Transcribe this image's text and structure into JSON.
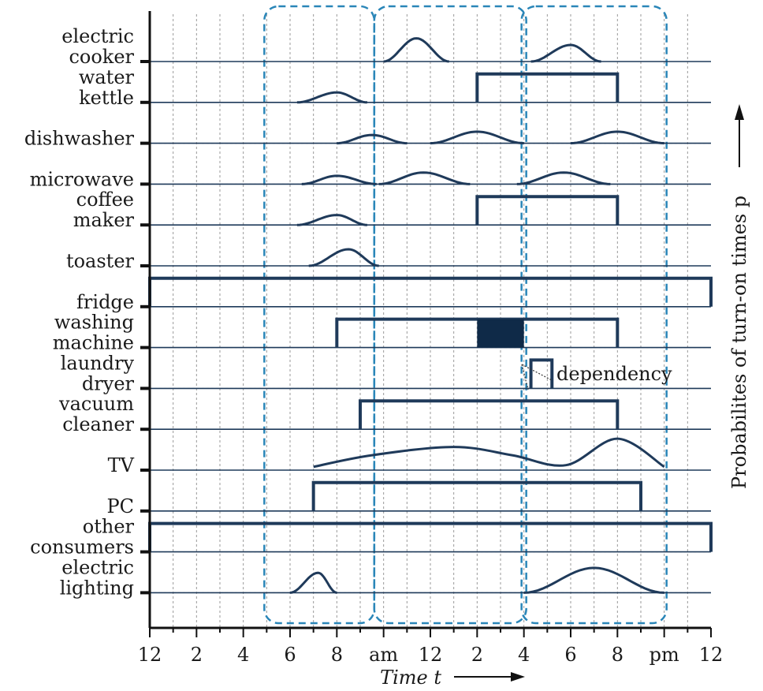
{
  "chart_data": {
    "type": "line",
    "xlabel": "Time t",
    "ylabel": "Probabilites of turn-on times p",
    "x_ticks": [
      "12",
      "2",
      "4",
      "6",
      "8",
      "am",
      "12",
      "2",
      "4",
      "6",
      "8",
      "pm",
      "12"
    ],
    "xlim": [
      0,
      24
    ],
    "grid": true,
    "annotation": "dependency",
    "highlight_windows": [
      [
        5.0,
        9.5
      ],
      [
        9.7,
        16.0
      ],
      [
        16.0,
        22.0
      ]
    ],
    "series": [
      {
        "name": "electric cooker",
        "label_lines": [
          "electric",
          "cooker"
        ],
        "kind": "bumps",
        "bumps": [
          {
            "start": 10.0,
            "peak": 11.4,
            "end": 12.8,
            "height": 0.7
          },
          {
            "start": 16.3,
            "peak": 18.0,
            "end": 19.3,
            "height": 0.5
          }
        ]
      },
      {
        "name": "water kettle",
        "label_lines": [
          "water",
          "kettle"
        ],
        "kind": "bumps+window",
        "bumps": [
          {
            "start": 6.3,
            "peak": 8.0,
            "end": 9.3,
            "height": 0.3
          }
        ],
        "windows": [
          {
            "start": 14.0,
            "end": 20.0
          }
        ]
      },
      {
        "name": "dishwasher",
        "label_lines": [
          "dishwasher"
        ],
        "kind": "bumps",
        "bumps": [
          {
            "start": 8.0,
            "peak": 9.5,
            "end": 11.0,
            "height": 0.25
          },
          {
            "start": 12.0,
            "peak": 14.0,
            "end": 16.0,
            "height": 0.35
          },
          {
            "start": 18.0,
            "peak": 20.0,
            "end": 22.0,
            "height": 0.35
          }
        ]
      },
      {
        "name": "microwave",
        "label_lines": [
          "microwave"
        ],
        "kind": "bumps",
        "bumps": [
          {
            "start": 6.5,
            "peak": 8.0,
            "end": 9.7,
            "height": 0.25
          },
          {
            "start": 9.8,
            "peak": 11.7,
            "end": 13.7,
            "height": 0.35
          },
          {
            "start": 15.7,
            "peak": 17.7,
            "end": 19.7,
            "height": 0.35
          }
        ]
      },
      {
        "name": "coffee maker",
        "label_lines": [
          "coffee",
          "maker"
        ],
        "kind": "bumps+window",
        "bumps": [
          {
            "start": 6.3,
            "peak": 8.0,
            "end": 9.3,
            "height": 0.3
          }
        ],
        "windows": [
          {
            "start": 14.0,
            "end": 20.0
          }
        ]
      },
      {
        "name": "toaster",
        "label_lines": [
          "toaster"
        ],
        "kind": "bumps",
        "bumps": [
          {
            "start": 6.8,
            "peak": 8.5,
            "end": 9.8,
            "height": 0.5
          }
        ]
      },
      {
        "name": "fridge",
        "label_lines": [
          "fridge"
        ],
        "kind": "window",
        "windows": [
          {
            "start": 0.0,
            "end": 24.0
          }
        ]
      },
      {
        "name": "washing machine",
        "label_lines": [
          "washing",
          "machine"
        ],
        "kind": "window",
        "windows": [
          {
            "start": 8.0,
            "end": 20.0
          }
        ],
        "filled_block": {
          "start": 14.0,
          "end": 16.0
        }
      },
      {
        "name": "laundry dryer",
        "label_lines": [
          "laundry",
          "dryer"
        ],
        "kind": "window",
        "windows": [
          {
            "start": 16.3,
            "end": 17.2
          }
        ]
      },
      {
        "name": "vacuum cleaner",
        "label_lines": [
          "vacuum",
          "cleaner"
        ],
        "kind": "window",
        "windows": [
          {
            "start": 9.0,
            "end": 20.0
          }
        ]
      },
      {
        "name": "TV",
        "label_lines": [
          "TV"
        ],
        "kind": "curve",
        "points": [
          [
            7.0,
            0.1
          ],
          [
            9.5,
            0.45
          ],
          [
            13.0,
            0.7
          ],
          [
            15.5,
            0.45
          ],
          [
            17.8,
            0.15
          ],
          [
            20.0,
            0.95
          ],
          [
            22.0,
            0.1
          ]
        ]
      },
      {
        "name": "PC",
        "label_lines": [
          "PC"
        ],
        "kind": "window",
        "windows": [
          {
            "start": 7.0,
            "end": 21.0
          }
        ]
      },
      {
        "name": "other consumers",
        "label_lines": [
          "other",
          "consumers"
        ],
        "kind": "window",
        "windows": [
          {
            "start": 0.0,
            "end": 24.0
          }
        ]
      },
      {
        "name": "electric lighting",
        "label_lines": [
          "electric",
          "lighting"
        ],
        "kind": "bumps",
        "bumps": [
          {
            "start": 6.0,
            "peak": 7.2,
            "end": 8.0,
            "height": 0.6
          },
          {
            "start": 16.0,
            "peak": 19.0,
            "end": 22.0,
            "height": 0.75
          }
        ]
      }
    ]
  }
}
